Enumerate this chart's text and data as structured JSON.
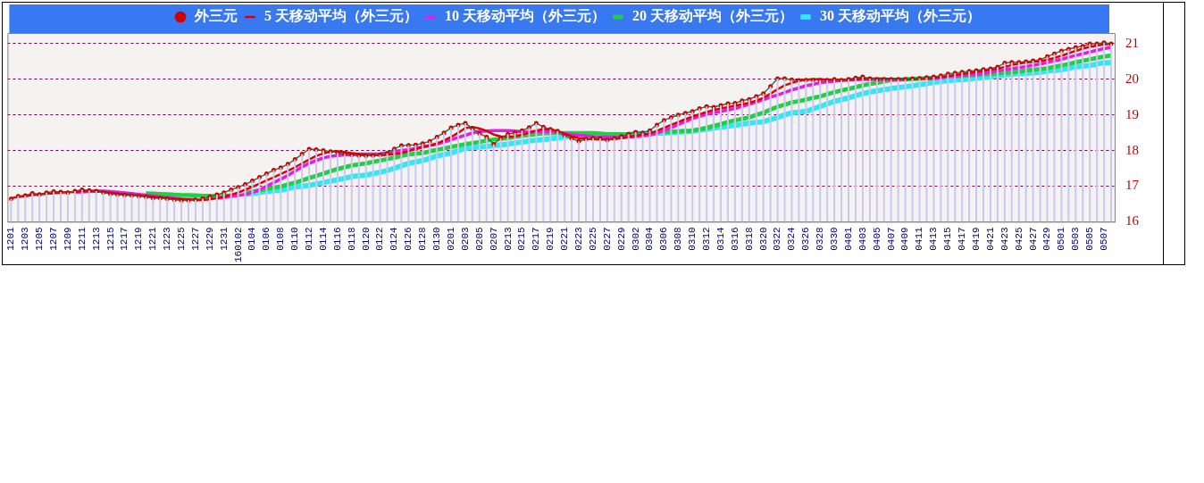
{
  "chart_data": {
    "type": "line",
    "categories": [
      "1201",
      null,
      "1203",
      null,
      "1205",
      null,
      "1207",
      null,
      "1209",
      null,
      "1211",
      null,
      "1213",
      null,
      "1215",
      null,
      "1217",
      null,
      "1219",
      null,
      "1221",
      null,
      "1223",
      null,
      "1225",
      null,
      "1227",
      null,
      "1229",
      null,
      "1231",
      null,
      "160102",
      null,
      "0104",
      null,
      "0106",
      null,
      "0108",
      null,
      "0110",
      null,
      "0112",
      null,
      "0114",
      null,
      "0116",
      null,
      "0118",
      null,
      "0120",
      null,
      "0122",
      null,
      "0124",
      null,
      "0126",
      null,
      "0128",
      null,
      "0130",
      null,
      "0201",
      null,
      "0203",
      null,
      "0205",
      null,
      "0207",
      null,
      "0213",
      null,
      "0215",
      null,
      "0217",
      null,
      "0219",
      null,
      "0221",
      null,
      "0223",
      null,
      "0225",
      null,
      "0227",
      null,
      "0229",
      null,
      "0302",
      null,
      "0304",
      null,
      "0306",
      null,
      "0308",
      null,
      "0310",
      null,
      "0312",
      null,
      "0314",
      null,
      "0316",
      null,
      "0318",
      null,
      "0320",
      null,
      "0322",
      null,
      "0324",
      null,
      "0326",
      null,
      "0328",
      null,
      "0330",
      null,
      "0401",
      null,
      "0403",
      null,
      "0405",
      null,
      "0407",
      null,
      "0409",
      null,
      "0411",
      null,
      "0413",
      null,
      "0415",
      null,
      "0417",
      null,
      "0419",
      null,
      "0421",
      null,
      "0423",
      null,
      "0425",
      null,
      "0427",
      null,
      "0429",
      null,
      "0501",
      null,
      "0503",
      null,
      "0505",
      null,
      "0507",
      null
    ],
    "series": [
      {
        "type": "bar",
        "color": "#c8c8f2",
        "values": [
          16.64,
          16.72,
          16.74,
          16.8,
          16.77,
          16.82,
          16.85,
          16.84,
          16.82,
          16.86,
          16.9,
          16.88,
          16.86,
          16.82,
          16.78,
          16.76,
          16.75,
          16.74,
          16.72,
          16.7,
          16.66,
          16.66,
          16.64,
          16.62,
          16.6,
          16.6,
          16.62,
          16.65,
          16.7,
          16.76,
          16.82,
          16.9,
          16.97,
          17.05,
          17.15,
          17.25,
          17.35,
          17.45,
          17.52,
          17.62,
          17.75,
          17.9,
          18.04,
          18.03,
          18.0,
          17.97,
          17.94,
          17.9,
          17.88,
          17.86,
          17.85,
          17.86,
          17.88,
          17.92,
          18.05,
          18.14,
          18.15,
          18.16,
          18.2,
          18.26,
          18.38,
          18.5,
          18.64,
          18.72,
          18.77,
          18.62,
          18.48,
          18.38,
          18.18,
          18.35,
          18.46,
          18.5,
          18.56,
          18.65,
          18.77,
          18.66,
          18.6,
          18.55,
          18.42,
          18.34,
          18.26,
          18.32,
          18.35,
          18.34,
          18.3,
          18.34,
          18.4,
          18.46,
          18.52,
          18.5,
          18.56,
          18.72,
          18.85,
          18.93,
          19.0,
          19.05,
          19.1,
          19.18,
          19.24,
          19.22,
          19.27,
          19.32,
          19.33,
          19.4,
          19.44,
          19.52,
          19.6,
          19.8,
          20.02,
          20.02,
          19.99,
          19.97,
          19.98,
          19.98,
          19.98,
          19.98,
          20.0,
          19.98,
          20.0,
          20.04,
          20.07,
          20.02,
          20.0,
          20.0,
          20.0,
          20.0,
          20.0,
          20.02,
          20.03,
          20.05,
          20.07,
          20.1,
          20.15,
          20.18,
          20.2,
          20.23,
          20.25,
          20.28,
          20.3,
          20.35,
          20.46,
          20.48,
          20.48,
          20.5,
          20.52,
          20.55,
          20.64,
          20.72,
          20.8,
          20.85,
          20.9,
          20.93,
          21.0,
          21.0,
          21.03,
          21.0
        ]
      },
      {
        "name": "外三元",
        "color": "#1a7a3a",
        "marker": "circle",
        "values": [
          16.64,
          16.72,
          16.74,
          16.8,
          16.77,
          16.82,
          16.85,
          16.84,
          16.82,
          16.86,
          16.9,
          16.88,
          16.86,
          16.82,
          16.78,
          16.76,
          16.75,
          16.74,
          16.72,
          16.7,
          16.66,
          16.66,
          16.64,
          16.62,
          16.6,
          16.6,
          16.62,
          16.65,
          16.7,
          16.76,
          16.82,
          16.9,
          16.97,
          17.05,
          17.15,
          17.25,
          17.35,
          17.45,
          17.52,
          17.62,
          17.75,
          17.9,
          18.04,
          18.03,
          18.0,
          17.97,
          17.94,
          17.9,
          17.88,
          17.86,
          17.85,
          17.86,
          17.88,
          17.92,
          18.05,
          18.14,
          18.15,
          18.16,
          18.2,
          18.26,
          18.38,
          18.5,
          18.64,
          18.72,
          18.77,
          18.62,
          18.48,
          18.38,
          18.18,
          18.35,
          18.46,
          18.5,
          18.56,
          18.65,
          18.77,
          18.66,
          18.6,
          18.55,
          18.42,
          18.34,
          18.26,
          18.32,
          18.35,
          18.34,
          18.3,
          18.34,
          18.4,
          18.46,
          18.52,
          18.5,
          18.56,
          18.72,
          18.85,
          18.93,
          19.0,
          19.05,
          19.1,
          19.18,
          19.24,
          19.22,
          19.27,
          19.32,
          19.33,
          19.4,
          19.44,
          19.52,
          19.6,
          19.8,
          20.02,
          20.02,
          19.99,
          19.97,
          19.98,
          19.98,
          19.98,
          19.98,
          20.0,
          19.98,
          20.0,
          20.04,
          20.07,
          20.02,
          20.0,
          20.0,
          20.0,
          20.0,
          20.0,
          20.02,
          20.03,
          20.05,
          20.07,
          20.1,
          20.15,
          20.18,
          20.2,
          20.23,
          20.25,
          20.28,
          20.3,
          20.35,
          20.46,
          20.48,
          20.48,
          20.5,
          20.52,
          20.55,
          20.64,
          20.72,
          20.8,
          20.85,
          20.9,
          20.93,
          21.0,
          21.0,
          21.03,
          21.0
        ]
      },
      {
        "name": "5 天移动平均（外三元）",
        "color": "#e00000",
        "marker": "none",
        "values": [
          16.66,
          16.7,
          16.72,
          16.75,
          16.77,
          16.79,
          16.8,
          16.82,
          16.83,
          16.84,
          16.86,
          16.87,
          16.86,
          16.84,
          16.81,
          16.79,
          16.77,
          16.75,
          16.74,
          16.72,
          16.7,
          16.68,
          16.66,
          16.64,
          16.63,
          16.62,
          16.61,
          16.61,
          16.63,
          16.66,
          16.7,
          16.76,
          16.82,
          16.9,
          16.98,
          17.07,
          17.16,
          17.25,
          17.34,
          17.43,
          17.53,
          17.64,
          17.75,
          17.85,
          17.92,
          17.97,
          17.98,
          17.96,
          17.93,
          17.9,
          17.88,
          17.87,
          17.87,
          17.88,
          17.9,
          17.93,
          17.98,
          18.04,
          18.1,
          18.14,
          18.2,
          18.28,
          18.38,
          18.5,
          18.63,
          18.66,
          18.62,
          18.55,
          18.45,
          18.4,
          18.38,
          18.4,
          18.45,
          18.5,
          18.56,
          18.6,
          18.6,
          18.55,
          18.47,
          18.4,
          18.35,
          18.33,
          18.32,
          18.31,
          18.31,
          18.32,
          18.35,
          18.38,
          18.42,
          18.45,
          18.48,
          18.55,
          18.64,
          18.72,
          18.8,
          18.88,
          18.95,
          19.02,
          19.08,
          19.14,
          19.18,
          19.22,
          19.26,
          19.3,
          19.34,
          19.4,
          19.48,
          19.6,
          19.72,
          19.83,
          19.9,
          19.96,
          19.99,
          20.0,
          20.0,
          19.99,
          19.99,
          19.99,
          19.99,
          20.0,
          20.02,
          20.02,
          20.02,
          20.02,
          20.01,
          20.0,
          20.0,
          20.0,
          20.01,
          20.03,
          20.04,
          20.06,
          20.09,
          20.12,
          20.15,
          20.18,
          20.21,
          20.24,
          20.27,
          20.3,
          20.35,
          20.4,
          20.44,
          20.47,
          20.49,
          20.51,
          20.55,
          20.6,
          20.66,
          20.73,
          20.8,
          20.86,
          20.91,
          20.95,
          20.98,
          21.0
        ]
      },
      {
        "name": "10 天移动平均（外三元）",
        "color": "#e020e0",
        "marker": "none",
        "values": [
          null,
          null,
          null,
          null,
          null,
          null,
          null,
          null,
          null,
          16.83,
          16.84,
          16.85,
          16.86,
          16.86,
          16.85,
          16.83,
          16.81,
          16.79,
          16.77,
          16.75,
          16.73,
          16.7,
          16.68,
          16.66,
          16.64,
          16.63,
          16.63,
          null,
          null,
          16.66,
          16.68,
          16.71,
          16.74,
          16.77,
          16.82,
          16.9,
          17.0,
          17.1,
          17.2,
          17.3,
          17.42,
          17.54,
          17.64,
          17.72,
          17.79,
          17.84,
          17.86,
          17.88,
          17.89,
          17.9,
          17.9,
          17.9,
          17.91,
          17.94,
          17.97,
          18.0,
          18.02,
          18.06,
          18.1,
          18.14,
          18.18,
          18.24,
          18.3,
          18.37,
          18.43,
          18.49,
          18.54,
          18.55,
          18.56,
          18.56,
          18.56,
          18.55,
          18.53,
          18.53,
          18.53,
          18.54,
          18.54,
          18.51,
          18.48,
          18.45,
          18.43,
          18.41,
          18.39,
          18.38,
          18.37,
          18.37,
          18.37,
          18.38,
          18.39,
          18.41,
          18.43,
          18.49,
          18.56,
          18.64,
          18.73,
          18.81,
          18.9,
          18.96,
          19.02,
          19.06,
          19.1,
          19.14,
          19.18,
          19.24,
          19.3,
          19.36,
          19.43,
          19.5,
          19.56,
          19.63,
          19.7,
          19.76,
          19.82,
          19.86,
          19.9,
          19.93,
          19.95,
          19.97,
          19.98,
          19.99,
          20.0,
          20.0,
          20.0,
          20.0,
          20.0,
          20.0,
          20.0,
          null,
          null,
          20.01,
          20.02,
          20.04,
          20.07,
          20.09,
          20.11,
          20.12,
          20.14,
          20.17,
          20.2,
          20.24,
          20.27,
          20.3,
          20.33,
          20.36,
          20.39,
          20.43,
          20.47,
          20.52,
          20.56,
          20.62,
          20.67,
          20.72,
          20.77,
          20.82,
          20.86,
          20.9
        ]
      },
      {
        "name": "20 天移动平均（外三元）",
        "color": "#20d040",
        "marker": "none",
        "values": [
          null,
          null,
          null,
          null,
          null,
          null,
          null,
          null,
          null,
          null,
          null,
          null,
          null,
          null,
          null,
          null,
          null,
          null,
          null,
          16.8,
          16.79,
          16.78,
          16.77,
          16.76,
          16.75,
          16.75,
          16.74,
          16.73,
          16.73,
          16.72,
          16.72,
          16.74,
          null,
          16.81,
          16.85,
          16.88,
          16.92,
          16.96,
          16.99,
          17.05,
          17.1,
          17.16,
          17.23,
          17.29,
          17.35,
          17.42,
          17.48,
          17.53,
          17.58,
          17.61,
          17.64,
          17.68,
          17.72,
          17.76,
          17.8,
          17.85,
          17.89,
          17.91,
          17.93,
          17.98,
          18.02,
          18.06,
          18.1,
          18.14,
          18.18,
          18.21,
          18.24,
          18.28,
          18.31,
          18.33,
          18.35,
          18.38,
          18.41,
          18.44,
          18.46,
          18.48,
          18.49,
          18.49,
          18.49,
          18.49,
          18.49,
          18.49,
          18.49,
          18.48,
          18.46,
          18.46,
          18.46,
          18.46,
          18.46,
          18.47,
          null,
          null,
          18.51,
          18.53,
          18.54,
          18.55,
          18.56,
          18.6,
          18.64,
          18.69,
          18.74,
          18.8,
          18.85,
          18.89,
          18.93,
          19.0,
          19.06,
          19.15,
          19.23,
          19.29,
          19.35,
          19.39,
          19.43,
          19.48,
          19.52,
          19.58,
          19.64,
          19.69,
          19.73,
          19.78,
          19.83,
          19.87,
          19.9,
          19.94,
          19.98,
          19.99,
          20.0,
          20.01,
          20.02,
          20.03,
          20.04,
          null,
          null,
          20.08,
          20.1,
          20.11,
          20.12,
          20.14,
          20.15,
          20.17,
          20.18,
          20.2,
          20.22,
          20.25,
          20.27,
          20.29,
          20.31,
          20.35,
          20.39,
          20.43,
          20.48,
          20.52,
          20.56,
          20.6,
          20.64,
          20.67
        ]
      },
      {
        "name": "30 天移动平均（外三元）",
        "color": "#30e8f0",
        "marker": "none",
        "values": [
          null,
          null,
          null,
          null,
          null,
          null,
          null,
          null,
          null,
          null,
          null,
          null,
          null,
          null,
          null,
          null,
          null,
          null,
          null,
          null,
          null,
          null,
          null,
          null,
          null,
          null,
          null,
          null,
          null,
          null,
          null,
          null,
          null,
          16.77,
          16.79,
          16.82,
          16.85,
          16.87,
          16.88,
          16.93,
          16.98,
          17.0,
          17.02,
          17.06,
          17.1,
          17.14,
          17.18,
          17.22,
          17.27,
          17.29,
          17.31,
          17.35,
          17.39,
          17.44,
          17.5,
          17.57,
          17.64,
          17.68,
          17.72,
          17.78,
          17.85,
          17.89,
          17.93,
          18.0,
          18.06,
          18.08,
          18.1,
          18.12,
          18.14,
          18.16,
          18.18,
          18.21,
          18.24,
          18.27,
          18.29,
          18.31,
          18.33,
          18.35,
          18.38,
          18.39,
          18.39,
          null,
          null,
          null,
          null,
          null,
          null,
          18.46,
          18.48,
          18.48,
          18.49,
          18.49,
          18.49,
          18.5,
          18.52,
          18.53,
          18.54,
          18.57,
          18.6,
          18.63,
          18.66,
          18.68,
          18.71,
          18.74,
          18.77,
          18.79,
          18.81,
          18.87,
          18.93,
          19.0,
          19.06,
          19.08,
          19.1,
          19.17,
          19.24,
          19.31,
          19.38,
          19.43,
          19.48,
          19.54,
          19.6,
          19.64,
          19.68,
          19.71,
          19.74,
          19.77,
          19.79,
          19.82,
          19.85,
          19.88,
          19.91,
          19.94,
          19.96,
          19.98,
          19.99,
          20.01,
          20.03,
          20.05,
          20.07,
          20.1,
          20.12,
          20.14,
          20.16,
          20.17,
          20.18,
          20.2,
          20.23,
          20.25,
          20.27,
          20.31,
          20.35,
          20.37,
          20.39,
          20.43,
          20.46,
          20.47
        ]
      }
    ],
    "ylim": [
      16,
      21.3
    ],
    "yticks": [
      16,
      17,
      18,
      19,
      20,
      21
    ],
    "grid": "y",
    "legend": "top",
    "line_style": "solid"
  }
}
